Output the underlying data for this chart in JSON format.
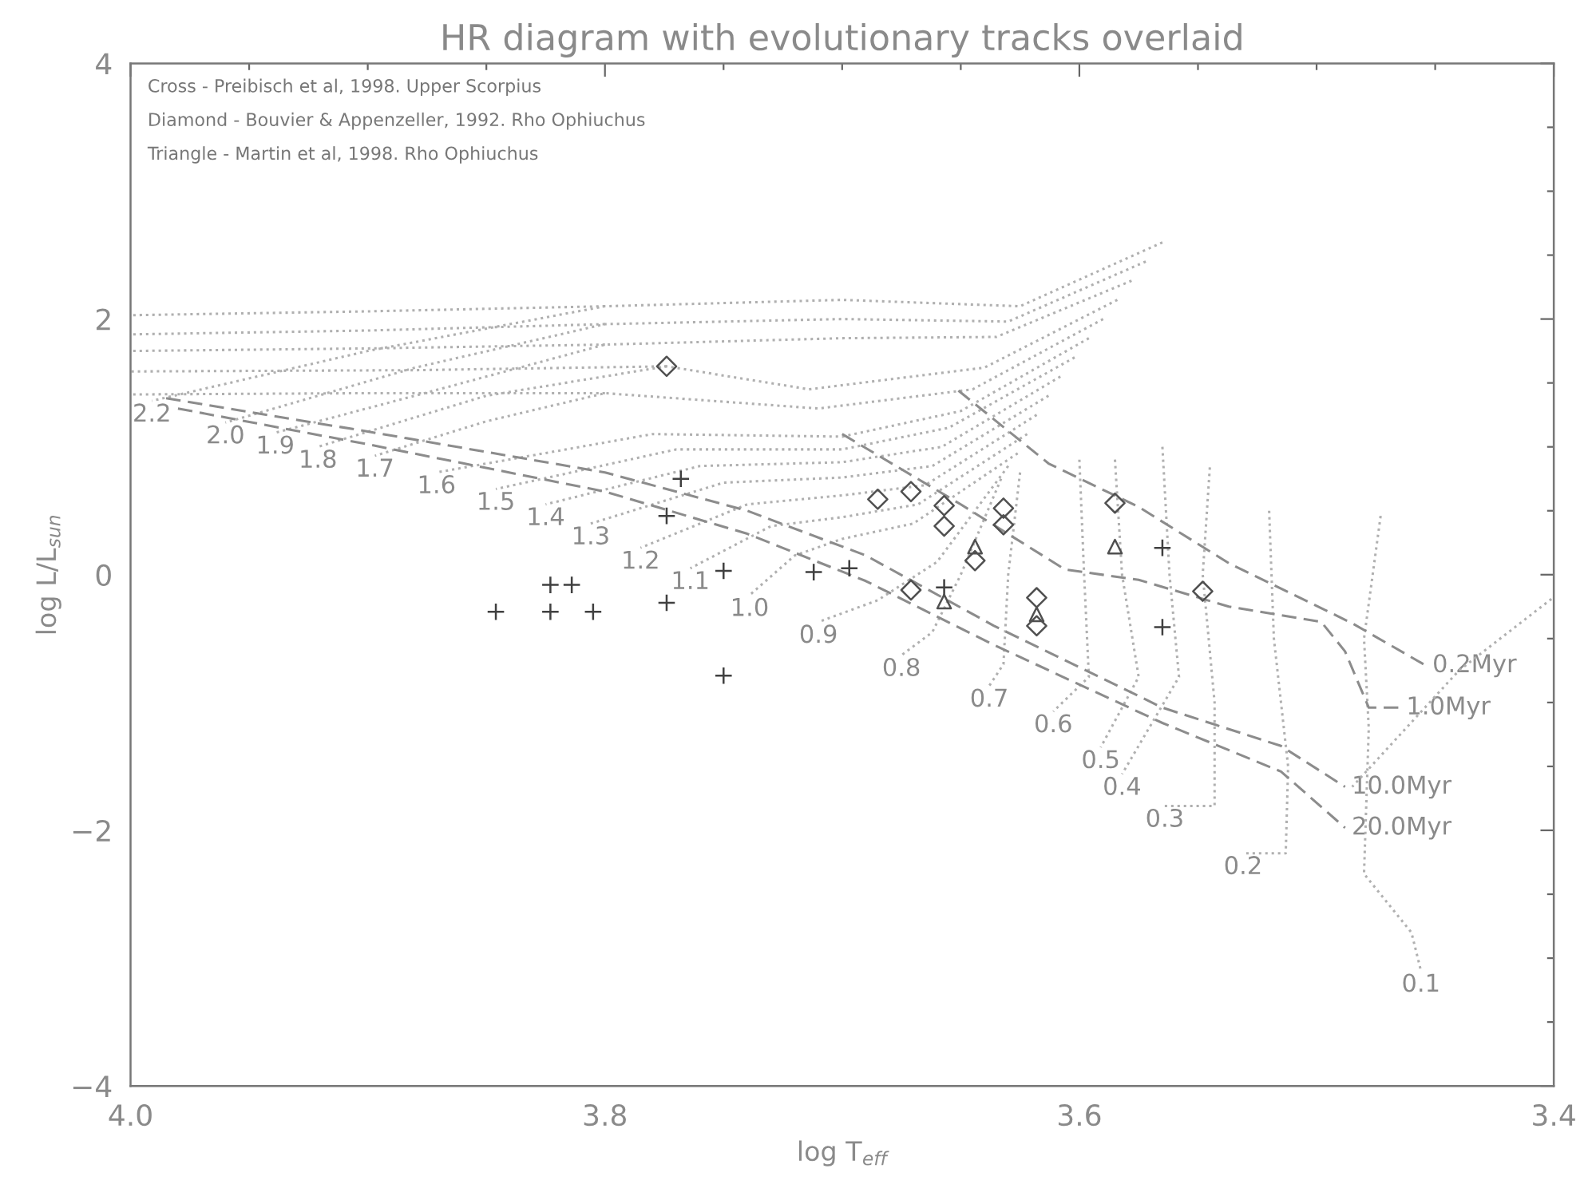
{
  "chart_data": {
    "type": "scatter",
    "title": "HR diagram with evolutionary tracks overlaid",
    "xlabel": "log T$_{eff}$",
    "ylabel": "log L/L$_{sun}$",
    "xlim": [
      4.0,
      3.4
    ],
    "ylim": [
      -4,
      4
    ],
    "xticks": [
      {
        "value": 4.0,
        "label": "4.0"
      },
      {
        "value": 3.95,
        "label": null
      },
      {
        "value": 3.9,
        "label": null
      },
      {
        "value": 3.85,
        "label": null
      },
      {
        "value": 3.8,
        "label": "3.8"
      },
      {
        "value": 3.75,
        "label": null
      },
      {
        "value": 3.7,
        "label": null
      },
      {
        "value": 3.65,
        "label": null
      },
      {
        "value": 3.6,
        "label": "3.6"
      },
      {
        "value": 3.55,
        "label": null
      },
      {
        "value": 3.5,
        "label": null
      },
      {
        "value": 3.45,
        "label": null
      },
      {
        "value": 3.4,
        "label": "3.4"
      }
    ],
    "yticks": [
      {
        "value": -4,
        "label": "−4"
      },
      {
        "value": -3.5,
        "label": null
      },
      {
        "value": -3,
        "label": null
      },
      {
        "value": -2.5,
        "label": null
      },
      {
        "value": -2,
        "label": "−2"
      },
      {
        "value": -1.5,
        "label": null
      },
      {
        "value": -1,
        "label": null
      },
      {
        "value": -0.5,
        "label": null
      },
      {
        "value": 0,
        "label": "0"
      },
      {
        "value": 0.5,
        "label": null
      },
      {
        "value": 1,
        "label": null
      },
      {
        "value": 1.5,
        "label": null
      },
      {
        "value": 2,
        "label": "2"
      },
      {
        "value": 2.5,
        "label": null
      },
      {
        "value": 3,
        "label": null
      },
      {
        "value": 3.5,
        "label": null
      },
      {
        "value": 4,
        "label": "4"
      }
    ],
    "series": [
      {
        "type": "line",
        "line_style": "dotted",
        "color": "#b0b0b0",
        "x": [
          3.8,
          3.9,
          4.0
        ],
        "values": [
          2.1,
          2.06,
          2.03
        ]
      },
      {
        "type": "line",
        "line_style": "dotted",
        "color": "#b0b0b0",
        "x": [
          3.8,
          3.9,
          4.0
        ],
        "values": [
          1.96,
          1.91,
          1.88
        ]
      },
      {
        "type": "line",
        "line_style": "dotted",
        "color": "#b0b0b0",
        "x": [
          3.8,
          3.9,
          4.0
        ],
        "values": [
          1.8,
          1.77,
          1.75
        ]
      },
      {
        "type": "line",
        "line_style": "dotted",
        "color": "#b0b0b0",
        "x": [
          3.774,
          3.88,
          4.0
        ],
        "values": [
          1.63,
          1.6,
          1.59
        ]
      },
      {
        "type": "line",
        "line_style": "dotted",
        "color": "#b0b0b0",
        "x": [
          3.8,
          3.9,
          4.0
        ],
        "values": [
          1.42,
          1.42,
          1.41
        ]
      },
      {
        "type": "line",
        "line_style": "dotted",
        "color": "#b0b0b0",
        "name": "2.2",
        "x": [
          3.565,
          3.625,
          3.7,
          3.8,
          3.9,
          3.991
        ],
        "values": [
          2.6,
          2.1,
          2.15,
          2.1,
          1.75,
          1.36
        ]
      },
      {
        "type": "line",
        "line_style": "dotted",
        "color": "#b0b0b0",
        "name": "2.0",
        "x": [
          3.572,
          3.63,
          3.7,
          3.8,
          3.88,
          3.96
        ],
        "values": [
          2.45,
          1.98,
          2.0,
          1.96,
          1.62,
          1.19
        ]
      },
      {
        "type": "line",
        "line_style": "dotted",
        "color": "#b0b0b0",
        "name": "1.9",
        "x": [
          3.578,
          3.635,
          3.7,
          3.8,
          3.87,
          3.939
        ],
        "values": [
          2.3,
          1.86,
          1.85,
          1.8,
          1.45,
          1.11
        ]
      },
      {
        "type": "line",
        "line_style": "dotted",
        "color": "#b0b0b0",
        "name": "1.8",
        "x": [
          3.584,
          3.64,
          3.714,
          3.774,
          3.85,
          3.921
        ],
        "values": [
          2.15,
          1.62,
          1.45,
          1.63,
          1.4,
          1.0
        ]
      },
      {
        "type": "line",
        "line_style": "dotted",
        "color": "#b0b0b0",
        "name": "1.7",
        "x": [
          3.59,
          3.645,
          3.71,
          3.8,
          3.85,
          3.897
        ],
        "values": [
          2.0,
          1.45,
          1.3,
          1.42,
          1.2,
          0.93
        ]
      },
      {
        "type": "line",
        "line_style": "dotted",
        "color": "#b0b0b0",
        "name": "1.6",
        "x": [
          3.596,
          3.65,
          3.7,
          3.78,
          3.871
        ],
        "values": [
          1.85,
          1.28,
          1.08,
          1.1,
          0.8
        ]
      },
      {
        "type": "line",
        "line_style": "dotted",
        "color": "#b0b0b0",
        "name": "1.5",
        "x": [
          3.602,
          3.655,
          3.7,
          3.77,
          3.846
        ],
        "values": [
          1.7,
          1.15,
          0.98,
          0.98,
          0.67
        ]
      },
      {
        "type": "line",
        "line_style": "dotted",
        "color": "#b0b0b0",
        "name": "1.4",
        "x": [
          3.608,
          3.658,
          3.7,
          3.76,
          3.825
        ],
        "values": [
          1.55,
          1.0,
          0.88,
          0.85,
          0.55
        ]
      },
      {
        "type": "line",
        "line_style": "dotted",
        "color": "#b0b0b0",
        "name": "1.3",
        "x": [
          3.613,
          3.662,
          3.7,
          3.75,
          3.806
        ],
        "values": [
          1.4,
          0.85,
          0.76,
          0.72,
          0.4
        ]
      },
      {
        "type": "line",
        "line_style": "dotted",
        "color": "#b0b0b0",
        "name": "1.2",
        "x": [
          3.618,
          3.665,
          3.7,
          3.74,
          3.785
        ],
        "values": [
          1.25,
          0.7,
          0.62,
          0.55,
          0.21
        ]
      },
      {
        "type": "line",
        "line_style": "dotted",
        "color": "#b0b0b0",
        "name": "1.1",
        "x": [
          3.622,
          3.668,
          3.7,
          3.73,
          3.764
        ],
        "values": [
          1.1,
          0.55,
          0.45,
          0.38,
          0.05
        ]
      },
      {
        "type": "line",
        "line_style": "dotted",
        "color": "#b0b0b0",
        "name": "1.0",
        "x": [
          3.626,
          3.67,
          3.7,
          3.72,
          3.739
        ],
        "values": [
          0.95,
          0.4,
          0.28,
          0.15,
          -0.16
        ]
      },
      {
        "type": "line",
        "line_style": "dotted",
        "color": "#b0b0b0",
        "name": "0.9",
        "x": [
          3.63,
          3.66,
          3.685,
          3.71
        ],
        "values": [
          0.85,
          0.1,
          -0.2,
          -0.37
        ]
      },
      {
        "type": "line",
        "line_style": "dotted",
        "color": "#b0b0b0",
        "name": "0.8",
        "x": [
          3.633,
          3.65,
          3.662,
          3.675
        ],
        "values": [
          0.75,
          0.0,
          -0.45,
          -0.63
        ]
      },
      {
        "type": "line",
        "line_style": "dotted",
        "color": "#b0b0b0",
        "name": "0.7",
        "x": [
          3.625,
          3.63,
          3.632,
          3.638
        ],
        "values": [
          0.8,
          0.0,
          -0.7,
          -0.87
        ]
      },
      {
        "type": "line",
        "line_style": "dotted",
        "color": "#b0b0b0",
        "name": "0.6",
        "x": [
          3.6,
          3.598,
          3.596,
          3.611
        ],
        "values": [
          0.9,
          0.0,
          -0.8,
          -1.07
        ]
      },
      {
        "type": "line",
        "line_style": "dotted",
        "color": "#b0b0b0",
        "name": "0.5",
        "x": [
          3.585,
          3.582,
          3.575,
          3.591
        ],
        "values": [
          0.9,
          0.0,
          -0.8,
          -1.35
        ]
      },
      {
        "type": "line",
        "line_style": "dotted",
        "color": "#b0b0b0",
        "name": "0.4",
        "x": [
          3.565,
          3.562,
          3.558,
          3.582
        ],
        "values": [
          1.0,
          0.0,
          -0.8,
          -1.56
        ]
      },
      {
        "type": "line",
        "line_style": "dotted",
        "color": "#b0b0b0",
        "name": "0.3",
        "x": [
          3.545,
          3.548,
          3.543,
          3.543,
          3.564
        ],
        "values": [
          0.84,
          0.0,
          -1.0,
          -1.81,
          -1.81
        ]
      },
      {
        "type": "line",
        "line_style": "dotted",
        "color": "#b0b0b0",
        "name": "0.2",
        "x": [
          3.52,
          3.518,
          3.512,
          3.513,
          3.531
        ],
        "values": [
          0.5,
          -0.5,
          -1.5,
          -2.18,
          -2.18
        ]
      },
      {
        "type": "line",
        "line_style": "dotted",
        "color": "#b0b0b0",
        "name": "0.1",
        "x": [
          3.473,
          3.48,
          3.478,
          3.48,
          3.46,
          3.456
        ],
        "values": [
          0.46,
          -0.5,
          -1.2,
          -2.34,
          -2.8,
          -3.1
        ]
      },
      {
        "type": "line",
        "line_style": "dotted",
        "color": "#b0b0b0",
        "x": [
          3.401,
          3.44,
          3.485
        ],
        "values": [
          -0.19,
          -0.75,
          -1.66
        ]
      },
      {
        "type": "line",
        "line_style": "dashed",
        "color": "#8c8c8c",
        "name": "0.2Myr",
        "x": [
          3.651,
          3.613,
          3.575,
          3.537,
          3.485,
          3.454
        ],
        "values": [
          1.44,
          0.87,
          0.53,
          0.09,
          -0.38,
          -0.71
        ]
      },
      {
        "type": "line",
        "line_style": "dashed",
        "color": "#8c8c8c",
        "name": "1.0Myr",
        "x": [
          3.7,
          3.65,
          3.606,
          3.575,
          3.537,
          3.498,
          3.488,
          3.478,
          3.465
        ],
        "values": [
          1.1,
          0.55,
          0.04,
          -0.04,
          -0.25,
          -0.37,
          -0.6,
          -1.04,
          -1.04
        ]
      },
      {
        "type": "line",
        "line_style": "dashed",
        "color": "#8c8c8c",
        "name": "10.0Myr",
        "x": [
          3.985,
          3.9,
          3.8,
          3.74,
          3.69,
          3.636,
          3.565,
          3.515,
          3.488
        ],
        "values": [
          1.38,
          1.12,
          0.8,
          0.5,
          0.15,
          -0.4,
          -1.04,
          -1.34,
          -1.66
        ]
      },
      {
        "type": "line",
        "line_style": "dashed",
        "color": "#8c8c8c",
        "name": "20.0Myr",
        "x": [
          3.98,
          3.9,
          3.8,
          3.74,
          3.69,
          3.636,
          3.565,
          3.515,
          3.488
        ],
        "values": [
          1.3,
          1.02,
          0.65,
          0.32,
          -0.05,
          -0.55,
          -1.16,
          -1.54,
          -1.98
        ]
      },
      {
        "marker": "cross",
        "color": "#404040",
        "x": [
          3.846,
          3.823,
          3.814,
          3.823,
          3.805,
          3.774,
          3.75,
          3.75,
          3.768,
          3.774,
          3.697,
          3.712,
          3.657,
          3.565,
          3.565
        ],
        "values": [
          -0.29,
          -0.08,
          -0.08,
          -0.29,
          -0.29,
          -0.22,
          0.03,
          -0.79,
          0.75,
          0.46,
          0.05,
          0.02,
          -0.1,
          0.21,
          -0.41
        ]
      },
      {
        "marker": "diamond",
        "color": "#505050",
        "x": [
          3.774,
          3.685,
          3.671,
          3.657,
          3.657,
          3.632,
          3.632,
          3.644,
          3.671,
          3.618,
          3.618,
          3.585,
          3.548
        ],
        "values": [
          1.63,
          0.59,
          0.65,
          0.54,
          0.38,
          0.52,
          0.39,
          0.11,
          -0.12,
          -0.18,
          -0.4,
          0.56,
          -0.13
        ]
      },
      {
        "marker": "triangle",
        "color": "#505050",
        "x": [
          3.644,
          3.657,
          3.618,
          3.585
        ],
        "values": [
          0.22,
          -0.21,
          -0.31,
          0.22
        ]
      }
    ],
    "annotations": [
      "Cross - Preibisch et al, 1998. Upper Scorpius",
      "Diamond - Bouvier & Appenzeller, 1992. Rho Ophiuchus",
      "Triangle - Martin et al, 1998. Rho Ophiuchus"
    ]
  }
}
